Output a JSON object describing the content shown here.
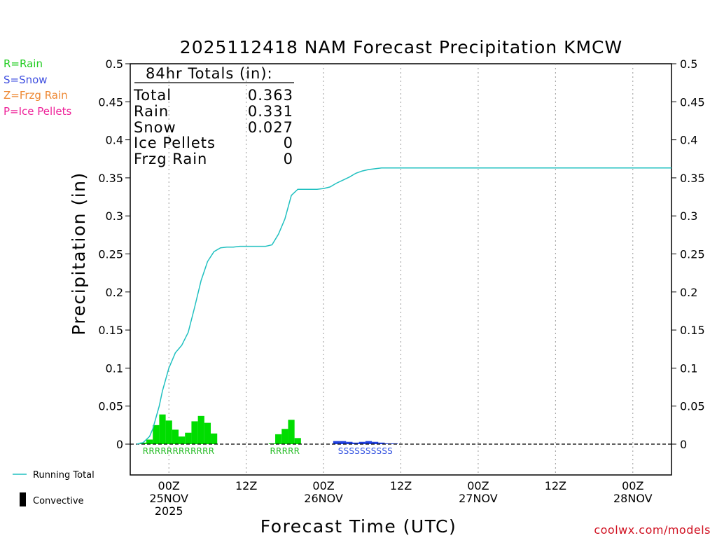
{
  "title": "2025112418 NAM Forecast Precipitation KMCW",
  "chart_data": {
    "type": "line+bar",
    "title": "2025112418 NAM Forecast Precipitation KMCW",
    "xlabel": "Forecast Time (UTC)",
    "ylabel": "Precipitation (in)",
    "ylim": [
      0,
      0.5
    ],
    "xlim_hours_from_start": [
      0,
      84
    ],
    "yticks": [
      0,
      0.05,
      0.1,
      0.15,
      0.2,
      0.25,
      0.3,
      0.35,
      0.4,
      0.45,
      0.5
    ],
    "ytick_labels": [
      "0",
      "0.05",
      "0.1",
      "0.15",
      "0.2",
      "0.25",
      "0.3",
      "0.35",
      "0.4",
      "0.45",
      "0.5"
    ],
    "xticks": [
      {
        "hour": 6,
        "l1": "00Z",
        "l2": "25NOV",
        "l3": "2025"
      },
      {
        "hour": 18,
        "l1": "12Z",
        "l2": "",
        "l3": ""
      },
      {
        "hour": 30,
        "l1": "00Z",
        "l2": "26NOV",
        "l3": ""
      },
      {
        "hour": 42,
        "l1": "12Z",
        "l2": "",
        "l3": ""
      },
      {
        "hour": 54,
        "l1": "00Z",
        "l2": "27NOV",
        "l3": ""
      },
      {
        "hour": 66,
        "l1": "12Z",
        "l2": "",
        "l3": ""
      },
      {
        "hour": 78,
        "l1": "00Z",
        "l2": "28NOV",
        "l3": ""
      }
    ],
    "series": [
      {
        "name": "Running Total",
        "color": "#20c0c0",
        "hours": [
          1,
          2,
          3,
          3.5,
          4,
          4.5,
          5,
          5.5,
          6,
          7,
          8,
          9,
          10,
          11,
          12,
          13,
          14,
          15,
          16,
          17,
          18,
          19,
          20,
          21,
          22,
          23,
          24,
          25,
          26,
          27,
          28,
          29,
          30,
          31,
          32,
          33,
          34,
          35,
          36,
          37,
          38,
          39,
          40,
          41,
          42,
          84
        ],
        "values": [
          0,
          0.002,
          0.01,
          0.02,
          0.035,
          0.05,
          0.07,
          0.085,
          0.1,
          0.12,
          0.13,
          0.147,
          0.18,
          0.215,
          0.24,
          0.253,
          0.258,
          0.259,
          0.259,
          0.26,
          0.26,
          0.26,
          0.26,
          0.26,
          0.262,
          0.276,
          0.296,
          0.327,
          0.335,
          0.335,
          0.335,
          0.335,
          0.336,
          0.338,
          0.343,
          0.347,
          0.351,
          0.356,
          0.359,
          0.361,
          0.362,
          0.363,
          0.363,
          0.363,
          0.363,
          0.363
        ]
      },
      {
        "name": "Rain",
        "color": "#00dd00",
        "hours": [
          2,
          3,
          4,
          5,
          6,
          7,
          8,
          9,
          10,
          11,
          12,
          13,
          22,
          23,
          24,
          25,
          26
        ],
        "values": [
          0.002,
          0.006,
          0.025,
          0.039,
          0.031,
          0.019,
          0.01,
          0.015,
          0.03,
          0.037,
          0.028,
          0.014,
          0.001,
          0.013,
          0.02,
          0.032,
          0.008
        ]
      },
      {
        "name": "Snow",
        "color": "#2040e0",
        "hours": [
          32,
          33,
          34,
          35,
          36,
          37,
          38,
          39,
          40,
          41
        ],
        "values": [
          0.004,
          0.004,
          0.003,
          0.002,
          0.003,
          0.004,
          0.003,
          0.002,
          0.001,
          0.001
        ]
      }
    ],
    "ptype_annotations": [
      {
        "text": "RRRRRRRRRRRR",
        "color": "#22bb22"
      },
      {
        "text": "RRRRR",
        "color": "#22bb22"
      },
      {
        "text": "SSSSSSSSSS",
        "color": "#3050e0"
      }
    ],
    "totals_box": {
      "header": "84hr Totals (in):",
      "rows": [
        {
          "label": "Total",
          "value": "0.363"
        },
        {
          "label": "Rain",
          "value": "0.331"
        },
        {
          "label": "Snow",
          "value": "0.027"
        },
        {
          "label": "Ice Pellets",
          "value": "0"
        },
        {
          "label": "Frzg Rain",
          "value": "0"
        }
      ]
    }
  },
  "ptype_legend": [
    {
      "text": "R=Rain",
      "color": "#22cc22"
    },
    {
      "text": "S=Snow",
      "color": "#4050e0"
    },
    {
      "text": "Z=Frzg Rain",
      "color": "#ee8833"
    },
    {
      "text": "P=Ice Pellets",
      "color": "#ee2299"
    }
  ],
  "series_legend": {
    "running_total": "Running Total",
    "convective": "Convective"
  },
  "credit": "coolwx.com/models",
  "credit_color": "#d01020"
}
